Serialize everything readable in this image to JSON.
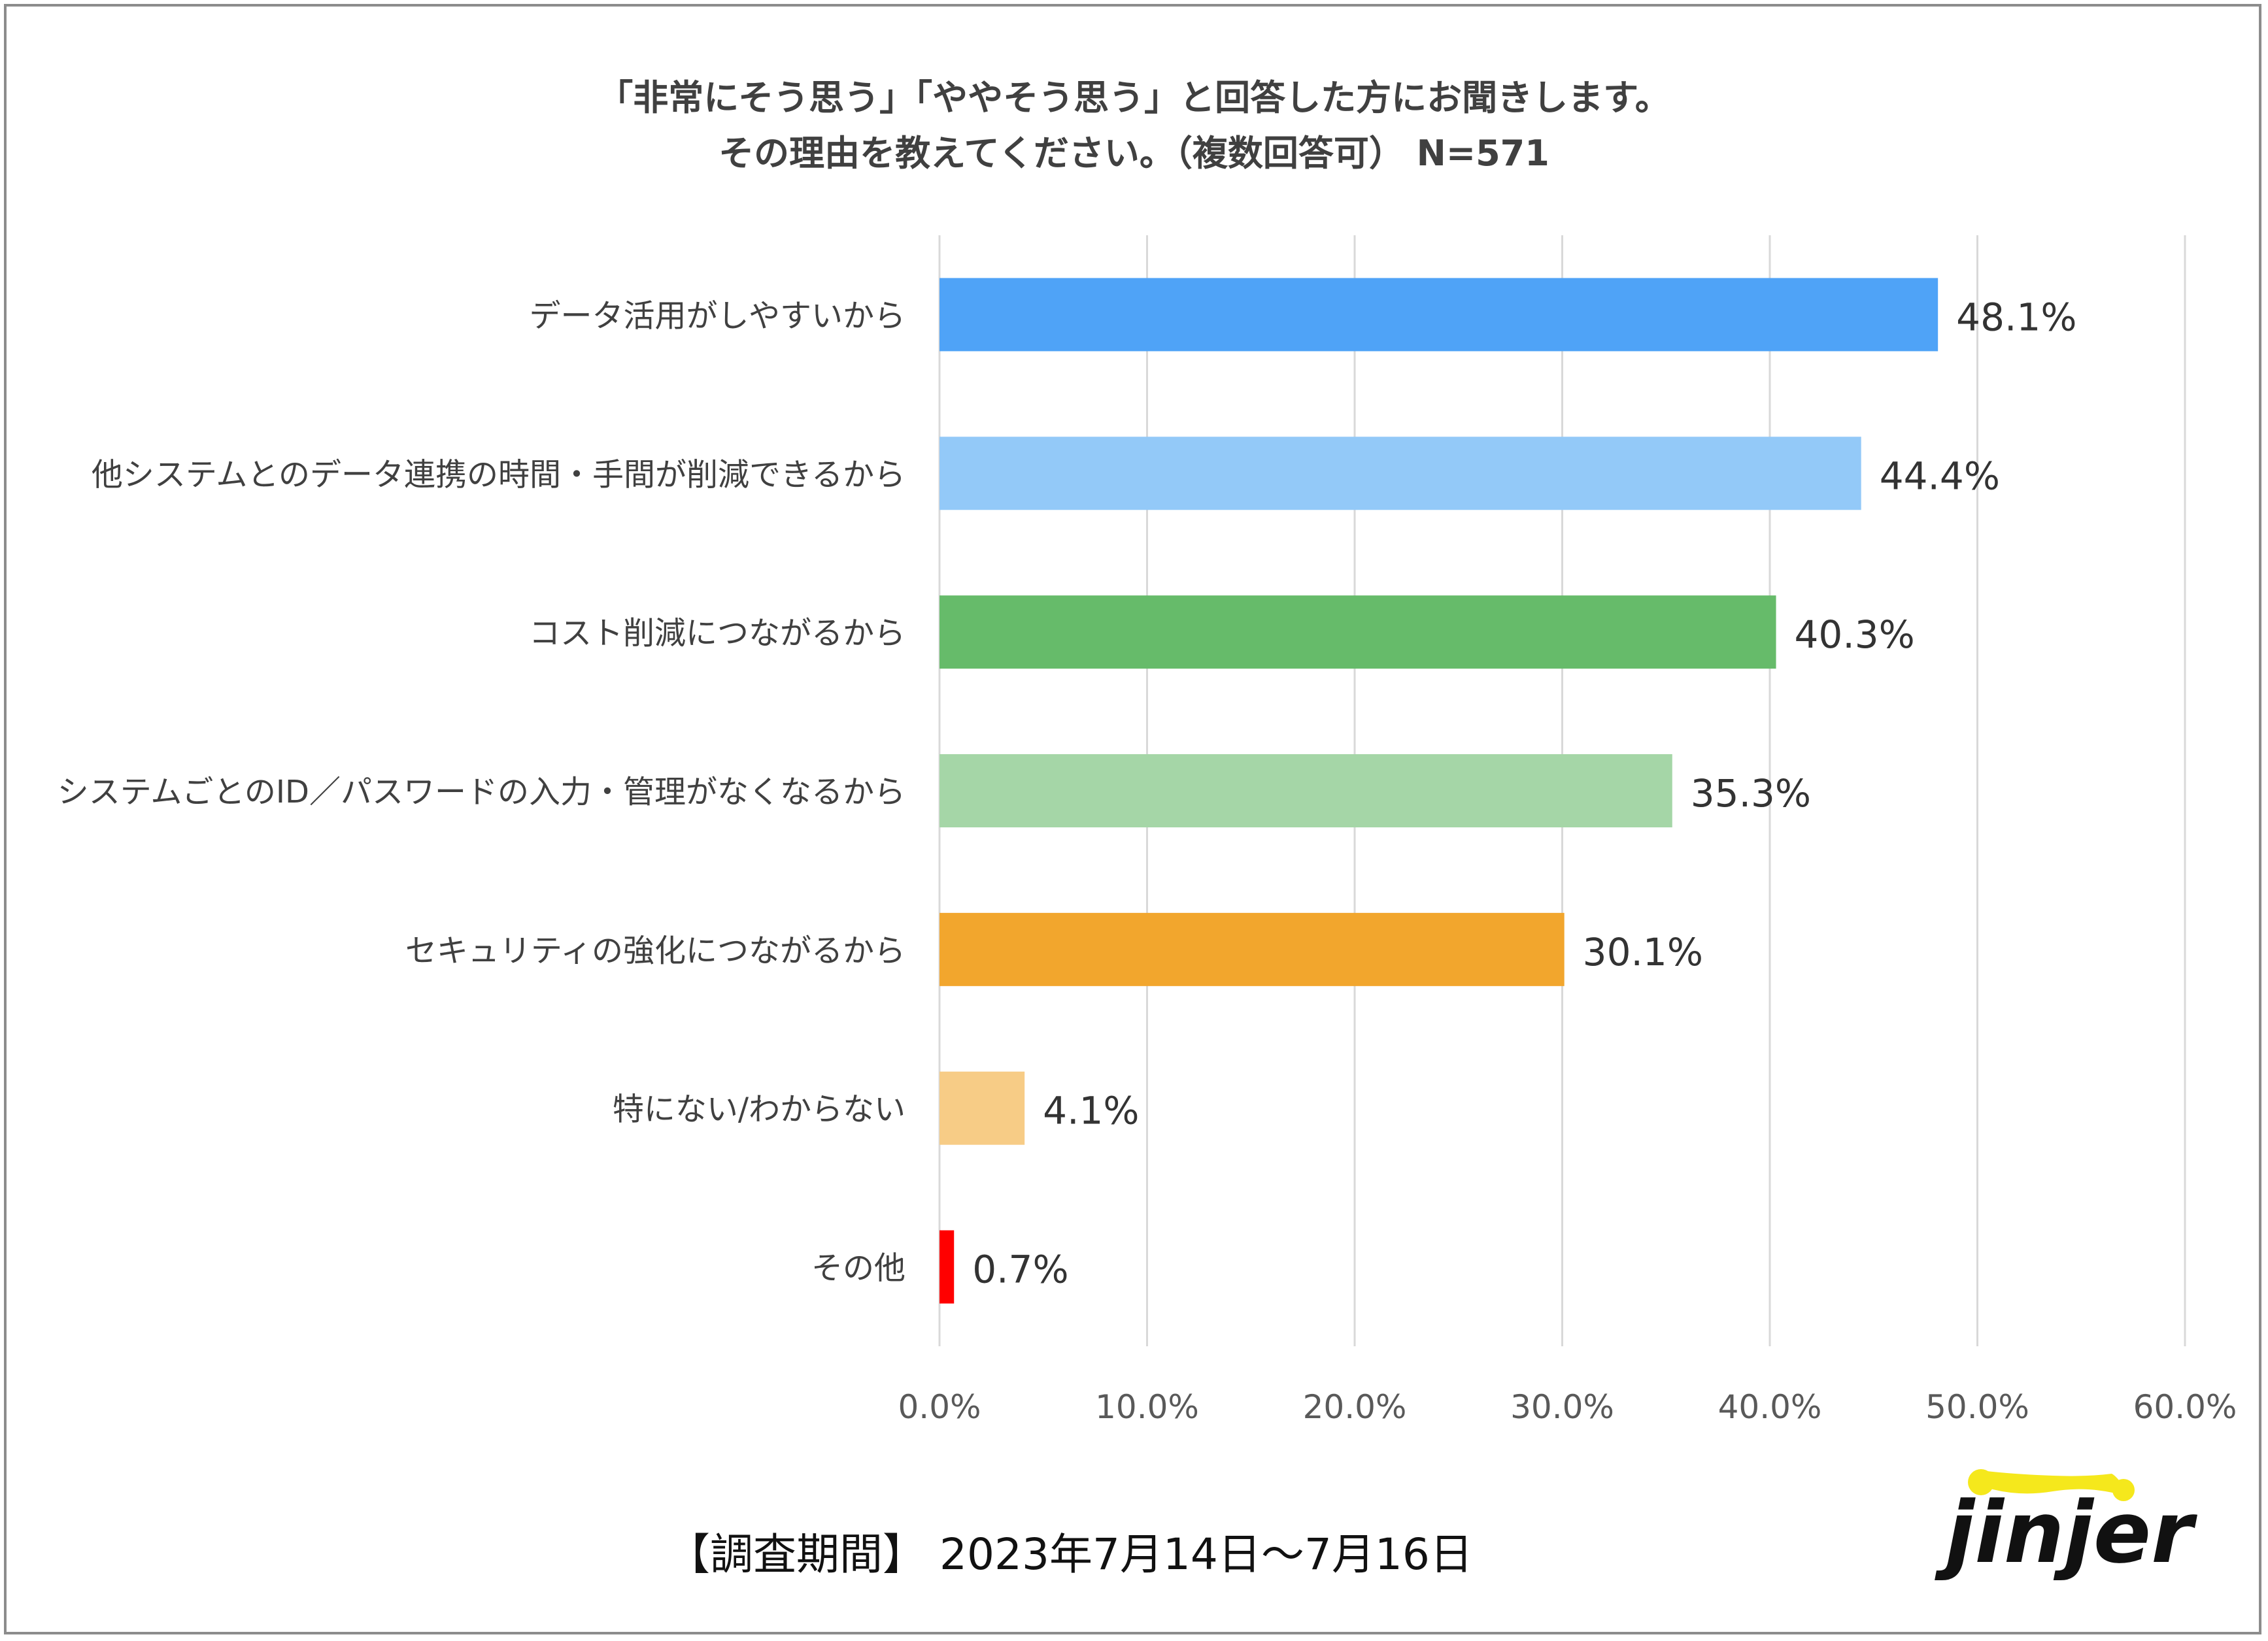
{
  "chart_data": {
    "type": "bar",
    "orientation": "horizontal",
    "title": "「非常にそう思う」「ややそう思う」と回答した方にお聞きします。",
    "subtitle": "その理由を教えてください。（複数回答可） N=571",
    "categories": [
      "データ活用がしやすいから",
      "他システムとのデータ連携の時間・手間が削減できるから",
      "コスト削減につながるから",
      "システムごとのID／パスワードの入力・管理がなくなるから",
      "セキュリティの強化につながるから",
      "特にない/わからない",
      "その他"
    ],
    "values": [
      48.1,
      44.4,
      40.3,
      35.3,
      30.1,
      4.1,
      0.7
    ],
    "value_labels": [
      "48.1%",
      "44.4%",
      "40.3%",
      "35.3%",
      "30.1%",
      "4.1%",
      "0.7%"
    ],
    "colors": [
      "#4FA3F7",
      "#93C9F8",
      "#66BB6A",
      "#A5D6A7",
      "#F2A62D",
      "#F7CC86",
      "#FF0000"
    ],
    "xlim": [
      0,
      60
    ],
    "x_ticks": [
      "0.0%",
      "10.0%",
      "20.0%",
      "30.0%",
      "40.0%",
      "50.0%",
      "60.0%"
    ],
    "grid": true,
    "xlabel": "",
    "ylabel": ""
  },
  "footer": {
    "period_label": "【調査期間】 2023年7月14日～7月16日"
  },
  "logo": {
    "text": "jinjer",
    "accent_color": "#F5E81C"
  }
}
